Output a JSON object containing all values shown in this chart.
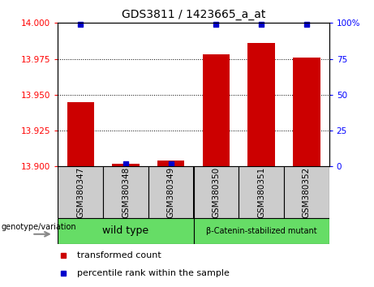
{
  "title": "GDS3811 / 1423665_a_at",
  "samples": [
    "GSM380347",
    "GSM380348",
    "GSM380349",
    "GSM380350",
    "GSM380351",
    "GSM380352"
  ],
  "transformed_counts": [
    13.945,
    13.902,
    13.904,
    13.978,
    13.986,
    13.976
  ],
  "percentile_ranks": [
    99,
    2,
    2,
    99,
    99,
    99
  ],
  "ylim_left": [
    13.9,
    14.0
  ],
  "ylim_right": [
    0,
    100
  ],
  "yticks_left": [
    13.9,
    13.925,
    13.95,
    13.975,
    14.0
  ],
  "yticks_right": [
    0,
    25,
    50,
    75,
    100
  ],
  "bar_color": "#CC0000",
  "dot_color": "#0000CC",
  "sample_box_color": "#cccccc",
  "group_box_color": "#66DD66",
  "legend_red_label": "transformed count",
  "legend_blue_label": "percentile rank within the sample",
  "genotype_label": "genotype/variation",
  "wt_label": "wild type",
  "mut_label": "β-Catenin-stabilized mutant",
  "wt_samples": [
    0,
    1,
    2
  ],
  "mut_samples": [
    3,
    4,
    5
  ]
}
